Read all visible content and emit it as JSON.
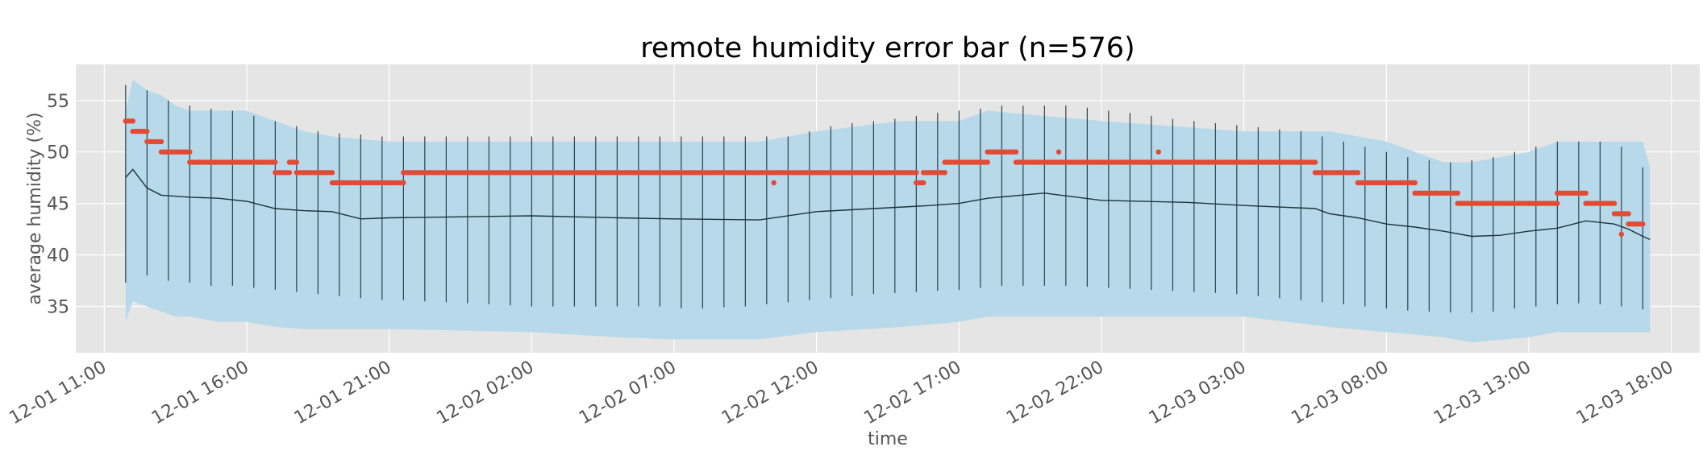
{
  "chart_data": {
    "type": "line",
    "title": "remote humidity error bar (n=576)",
    "xlabel": "time",
    "ylabel": "average humidity (%)",
    "xlim": [
      "2012-12-01 10:00",
      "2012-12-03 19:00"
    ],
    "ylim": [
      30.5,
      58.5
    ],
    "grid": true,
    "x_ticks": [
      "12-01 11:00",
      "12-01 16:00",
      "12-01 21:00",
      "12-02 02:00",
      "12-02 07:00",
      "12-02 12:00",
      "12-02 17:00",
      "12-02 22:00",
      "12-03 03:00",
      "12-03 08:00",
      "12-03 13:00",
      "12-03 18:00"
    ],
    "y_ticks": [
      35,
      40,
      45,
      50,
      55
    ],
    "colors": {
      "background": "#e5e5e5",
      "grid": "#ffffff",
      "band": "#b7d9e9",
      "mean_line": "#1e3340",
      "error_bar": "#1e3340",
      "remote_points": "#e24a33",
      "axis_text": "#555555"
    },
    "series": [
      {
        "kind": "band",
        "x": [
          "12-01 11:45",
          "12-01 12:00",
          "12-01 12:30",
          "12-01 13:00",
          "12-01 13:30",
          "12-01 14:00",
          "12-01 15:00",
          "12-01 16:00",
          "12-01 17:00",
          "12-01 18:00",
          "12-01 19:00",
          "12-01 21:00",
          "12-02 02:00",
          "12-02 05:00",
          "12-02 07:00",
          "12-02 10:00",
          "12-02 12:00",
          "12-02 15:00",
          "12-02 17:00",
          "12-02 18:00",
          "12-02 22:00",
          "12-03 03:00",
          "12-03 06:00",
          "12-03 08:00",
          "12-03 10:00",
          "12-03 11:00",
          "12-03 13:00",
          "12-03 14:00",
          "12-03 17:00",
          "12-03 17:15"
        ],
        "upper": [
          54,
          57,
          56,
          55.5,
          54.5,
          54,
          54,
          54,
          53,
          52,
          51.5,
          51,
          51,
          51,
          51,
          51,
          52,
          53,
          53,
          54,
          53,
          52,
          52,
          51,
          49,
          49,
          50,
          51,
          51,
          48.5
        ],
        "lower": [
          33.5,
          35.5,
          35,
          34.5,
          34,
          34,
          33.5,
          33.5,
          33,
          32.8,
          32.8,
          32.8,
          32.5,
          32,
          31.8,
          31.8,
          32.5,
          33,
          33.5,
          34,
          34,
          34,
          33,
          32.5,
          32,
          31.5,
          32,
          32.5,
          32.5,
          32.5
        ]
      },
      {
        "kind": "mean-line",
        "x": [
          "12-01 11:45",
          "12-01 12:00",
          "12-01 12:30",
          "12-01 13:00",
          "12-01 13:30",
          "12-01 14:00",
          "12-01 15:00",
          "12-01 16:00",
          "12-01 17:00",
          "12-01 18:00",
          "12-01 19:00",
          "12-01 20:00",
          "12-01 21:00",
          "12-02 02:00",
          "12-02 05:00",
          "12-02 07:00",
          "12-02 10:00",
          "12-02 12:00",
          "12-02 14:00",
          "12-02 16:00",
          "12-02 17:00",
          "12-02 18:00",
          "12-02 20:00",
          "12-02 22:00",
          "12-03 01:00",
          "12-03 03:00",
          "12-03 05:30",
          "12-03 06:00",
          "12-03 07:00",
          "12-03 08:00",
          "12-03 09:00",
          "12-03 10:00",
          "12-03 11:00",
          "12-03 12:00",
          "12-03 13:00",
          "12-03 14:00",
          "12-03 15:00",
          "12-03 16:00",
          "12-03 16:30",
          "12-03 17:00",
          "12-03 17:15"
        ],
        "values": [
          47.5,
          48.3,
          46.5,
          45.8,
          45.7,
          45.6,
          45.5,
          45.2,
          44.5,
          44.3,
          44.2,
          43.5,
          43.6,
          43.8,
          43.6,
          43.5,
          43.4,
          44.2,
          44.5,
          44.8,
          45.0,
          45.5,
          46.0,
          45.3,
          45.1,
          44.8,
          44.5,
          44.0,
          43.6,
          43.0,
          42.7,
          42.3,
          41.8,
          41.9,
          42.3,
          42.6,
          43.3,
          43.0,
          42.5,
          41.8,
          41.5
        ]
      },
      {
        "kind": "error-bars",
        "x": [
          "12-01 11:45",
          "12-01 12:30",
          "12-01 13:15",
          "12-01 14:00",
          "12-01 14:45",
          "12-01 15:30",
          "12-01 16:15",
          "12-01 17:00",
          "12-01 17:45",
          "12-01 18:30",
          "12-01 19:15",
          "12-01 20:00",
          "12-01 20:45",
          "12-01 21:30",
          "12-01 22:15",
          "12-01 23:00",
          "12-01 23:45",
          "12-02 00:30",
          "12-02 01:15",
          "12-02 02:00",
          "12-02 02:45",
          "12-02 03:30",
          "12-02 04:15",
          "12-02 05:00",
          "12-02 05:45",
          "12-02 06:30",
          "12-02 07:15",
          "12-02 08:00",
          "12-02 08:45",
          "12-02 09:30",
          "12-02 10:15",
          "12-02 11:00",
          "12-02 11:45",
          "12-02 12:30",
          "12-02 13:15",
          "12-02 14:00",
          "12-02 14:45",
          "12-02 15:30",
          "12-02 16:15",
          "12-02 17:00",
          "12-02 17:45",
          "12-02 18:30",
          "12-02 19:15",
          "12-02 20:00",
          "12-02 20:45",
          "12-02 21:30",
          "12-02 22:15",
          "12-02 23:00",
          "12-02 23:45",
          "12-03 00:30",
          "12-03 01:15",
          "12-03 02:00",
          "12-03 02:45",
          "12-03 03:30",
          "12-03 04:15",
          "12-03 05:00",
          "12-03 05:45",
          "12-03 06:30",
          "12-03 07:15",
          "12-03 08:00",
          "12-03 08:45",
          "12-03 09:30",
          "12-03 10:15",
          "12-03 11:00",
          "12-03 11:45",
          "12-03 12:30",
          "12-03 13:15",
          "12-03 14:00",
          "12-03 14:45",
          "12-03 15:30",
          "12-03 16:15",
          "12-03 17:00"
        ],
        "upper": [
          56.5,
          56,
          55,
          54.5,
          54.2,
          54,
          53.5,
          53,
          52.5,
          52,
          51.8,
          51.7,
          51.5,
          51.5,
          51.5,
          51.5,
          51.5,
          51.5,
          51.5,
          51.5,
          51.5,
          51.5,
          51.5,
          51.5,
          51.5,
          51.5,
          51.5,
          51.5,
          51.5,
          51.5,
          51.5,
          51.5,
          52,
          52.5,
          52.8,
          53,
          53.2,
          53.5,
          53.8,
          54,
          54.2,
          54.5,
          54.5,
          54.5,
          54.5,
          54.3,
          54,
          53.8,
          53.5,
          53.2,
          53,
          52.8,
          52.6,
          52.4,
          52.2,
          52,
          51.5,
          51,
          50.5,
          50,
          49.5,
          49.2,
          49,
          49.2,
          49.5,
          50,
          50.5,
          51,
          51,
          51,
          50.5,
          48.5
        ],
        "lower": [
          37.3,
          38,
          37.5,
          37.3,
          37,
          37,
          36.8,
          36.6,
          36.4,
          36.2,
          36,
          35.8,
          35.6,
          35.6,
          35.5,
          35.4,
          35.3,
          35.2,
          35.1,
          35,
          35,
          35,
          35,
          35,
          35,
          35,
          34.8,
          34.8,
          34.9,
          35,
          35.2,
          35.4,
          35.6,
          35.8,
          36,
          36.2,
          36.3,
          36.4,
          36.5,
          36.6,
          36.8,
          37,
          37,
          37,
          37,
          36.9,
          36.8,
          36.7,
          36.6,
          36.5,
          36.4,
          36.3,
          36.2,
          36,
          35.8,
          35.6,
          35.4,
          35.2,
          35,
          34.8,
          34.6,
          34.5,
          34.4,
          34.4,
          34.5,
          34.8,
          35,
          35.2,
          35.3,
          35.2,
          35,
          34.7
        ]
      },
      {
        "kind": "remote-points",
        "segments": [
          {
            "x": [
              "12-01 11:45",
              "12-01 12:00"
            ],
            "value": 53
          },
          {
            "x": [
              "12-01 12:00",
              "12-01 12:30"
            ],
            "value": 52
          },
          {
            "x": [
              "12-01 12:30",
              "12-01 13:00"
            ],
            "value": 51
          },
          {
            "x": [
              "12-01 13:00",
              "12-01 14:00"
            ],
            "value": 50
          },
          {
            "x": [
              "12-01 14:00",
              "12-01 17:00"
            ],
            "value": 49
          },
          {
            "x": [
              "12-01 17:00",
              "12-01 17:30"
            ],
            "value": 48
          },
          {
            "x": [
              "12-01 17:30",
              "12-01 17:45"
            ],
            "value": 49
          },
          {
            "x": [
              "12-01 17:45",
              "12-01 19:00"
            ],
            "value": 48
          },
          {
            "x": [
              "12-01 19:00",
              "12-01 21:30"
            ],
            "value": 47
          },
          {
            "x": [
              "12-01 21:30",
              "12-02 15:30"
            ],
            "value": 48
          },
          {
            "x": [
              "12-02 15:30",
              "12-02 15:45"
            ],
            "value": 47
          },
          {
            "x": [
              "12-02 15:45",
              "12-02 16:30"
            ],
            "value": 48
          },
          {
            "x": [
              "12-02 16:30",
              "12-02 18:00"
            ],
            "value": 49
          },
          {
            "x": [
              "12-02 18:00",
              "12-02 19:00"
            ],
            "value": 50
          },
          {
            "x": [
              "12-02 19:00",
              "12-03 05:30"
            ],
            "value": 49
          },
          {
            "x": [
              "12-03 05:30",
              "12-03 07:00"
            ],
            "value": 48
          },
          {
            "x": [
              "12-03 07:00",
              "12-03 09:00"
            ],
            "value": 47
          },
          {
            "x": [
              "12-03 09:00",
              "12-03 10:30"
            ],
            "value": 46
          },
          {
            "x": [
              "12-03 10:30",
              "12-03 13:00"
            ],
            "value": 45
          },
          {
            "x": [
              "12-03 13:00",
              "12-03 14:00"
            ],
            "value": 45
          },
          {
            "x": [
              "12-03 14:00",
              "12-03 15:00"
            ],
            "value": 46
          },
          {
            "x": [
              "12-03 15:00",
              "12-03 16:00"
            ],
            "value": 45
          },
          {
            "x": [
              "12-03 16:00",
              "12-03 16:30"
            ],
            "value": 44
          },
          {
            "x": [
              "12-03 16:30",
              "12-03 17:00"
            ],
            "value": 43
          }
        ],
        "spikes": [
          {
            "x": "12-02 10:30",
            "value": 47
          },
          {
            "x": "12-02 20:30",
            "value": 50
          },
          {
            "x": "12-03 00:00",
            "value": 50
          },
          {
            "x": "12-03 16:15",
            "value": 42
          }
        ]
      }
    ]
  }
}
